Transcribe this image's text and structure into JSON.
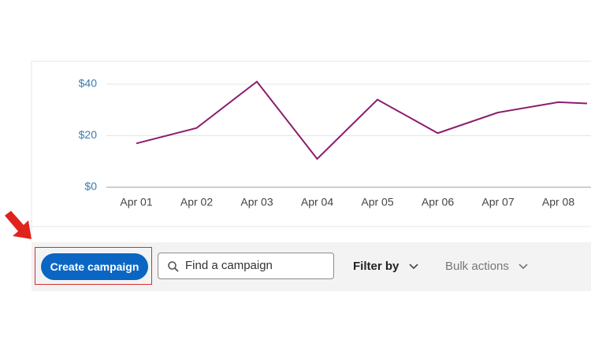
{
  "chart_data": {
    "type": "line",
    "categories": [
      "Apr 01",
      "Apr 02",
      "Apr 03",
      "Apr 04",
      "Apr 05",
      "Apr 06",
      "Apr 07",
      "Apr 08",
      null
    ],
    "values": [
      17,
      23,
      41,
      11,
      34,
      21,
      29,
      33,
      32
    ],
    "color": "#8b1d6e",
    "ylim": [
      0,
      40
    ],
    "yticks": [
      {
        "value": 0,
        "label": "$0"
      },
      {
        "value": 20,
        "label": "$20"
      },
      {
        "value": 40,
        "label": "$40"
      }
    ],
    "grid": true
  },
  "toolbar": {
    "create_button": "Create campaign",
    "search_placeholder": "Find a campaign",
    "filter": "Filter by",
    "bulk": "Bulk actions"
  }
}
